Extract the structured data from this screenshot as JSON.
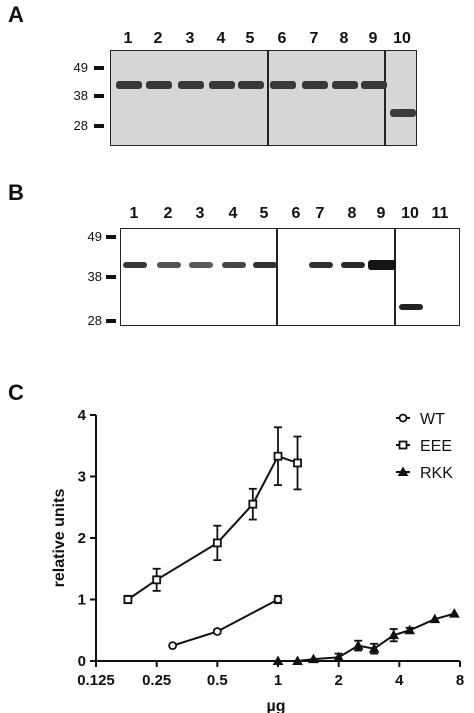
{
  "panels": {
    "A": {
      "letter": "A",
      "lane_labels": [
        "1",
        "2",
        "3",
        "4",
        "5",
        "6",
        "7",
        "8",
        "9",
        "10"
      ],
      "mw_markers": [
        "49",
        "38",
        "28"
      ],
      "bands": [
        {
          "lane": "1",
          "marker_kda": 42,
          "intensity": 0.85
        },
        {
          "lane": "2",
          "marker_kda": 42,
          "intensity": 0.85
        },
        {
          "lane": "3",
          "marker_kda": 42,
          "intensity": 0.85
        },
        {
          "lane": "4",
          "marker_kda": 42,
          "intensity": 0.85
        },
        {
          "lane": "5",
          "marker_kda": 42,
          "intensity": 0.85
        },
        {
          "lane": "6",
          "marker_kda": 42,
          "intensity": 0.8
        },
        {
          "lane": "7",
          "marker_kda": 42,
          "intensity": 0.85
        },
        {
          "lane": "8",
          "marker_kda": 42,
          "intensity": 0.85
        },
        {
          "lane": "9",
          "marker_kda": 42,
          "intensity": 0.85
        },
        {
          "lane": "10",
          "marker_kda": 32,
          "intensity": 0.75
        }
      ]
    },
    "B": {
      "letter": "B",
      "lane_labels": [
        "1",
        "2",
        "3",
        "4",
        "5",
        "6",
        "7",
        "8",
        "9",
        "10",
        "11"
      ],
      "mw_markers": [
        "49",
        "38",
        "28"
      ],
      "bands": [
        {
          "lane": "1",
          "marker_kda": 41,
          "intensity": 0.75
        },
        {
          "lane": "2",
          "marker_kda": 41,
          "intensity": 0.55
        },
        {
          "lane": "3",
          "marker_kda": 41,
          "intensity": 0.5
        },
        {
          "lane": "4",
          "marker_kda": 41,
          "intensity": 0.65
        },
        {
          "lane": "5",
          "marker_kda": 41,
          "intensity": 0.8
        },
        {
          "lane": "7",
          "marker_kda": 41,
          "intensity": 0.8
        },
        {
          "lane": "8",
          "marker_kda": 41,
          "intensity": 0.85
        },
        {
          "lane": "9",
          "marker_kda": 41,
          "intensity": 1.0
        },
        {
          "lane": "10",
          "marker_kda": 31,
          "intensity": 0.9
        }
      ]
    },
    "C": {
      "letter": "C"
    }
  },
  "chart_data": {
    "type": "line",
    "xlabel": "µg",
    "ylabel": "relative units",
    "x_scale": "log2",
    "xlim": [
      0.125,
      8
    ],
    "ylim": [
      0,
      4
    ],
    "x_ticks": [
      "0.125",
      "0.25",
      "0.5",
      "1",
      "2",
      "4",
      "8"
    ],
    "y_ticks": [
      "0",
      "1",
      "2",
      "3",
      "4"
    ],
    "legend_position": "top-right",
    "series": [
      {
        "name": "WT",
        "marker": "circle",
        "x": [
          0.3,
          0.5,
          1.0
        ],
        "y": [
          0.25,
          0.48,
          1.0
        ],
        "err": [
          0.0,
          0.03,
          0.06
        ]
      },
      {
        "name": "EEE",
        "marker": "square",
        "x": [
          0.18,
          0.25,
          0.5,
          0.75,
          1.0,
          1.25
        ],
        "y": [
          1.0,
          1.32,
          1.92,
          2.55,
          3.33,
          3.22
        ],
        "err": [
          0.06,
          0.18,
          0.28,
          0.25,
          0.47,
          0.43
        ]
      },
      {
        "name": "RKK",
        "marker": "triangle",
        "x": [
          1.0,
          1.25,
          1.5,
          2.0,
          2.5,
          3.0,
          3.75,
          4.5,
          6.0,
          7.5
        ],
        "y": [
          0.0,
          0.0,
          0.03,
          0.06,
          0.25,
          0.2,
          0.42,
          0.5,
          0.68,
          0.77
        ],
        "err": [
          0.0,
          0.0,
          0.0,
          0.06,
          0.08,
          0.08,
          0.1,
          0.04,
          0.0,
          0.0
        ]
      }
    ]
  }
}
